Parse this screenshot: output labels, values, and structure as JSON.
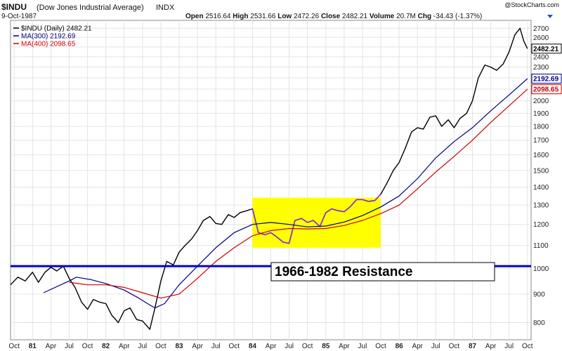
{
  "header": {
    "symbol": "$INDU",
    "name": "(Dow Jones Industrial Average)",
    "exchange": "INDX",
    "date": "9-Oct-1987",
    "watermark": "@StockCharts.com",
    "quote": {
      "open_label": "Open",
      "open": "2516.64",
      "high_label": "High",
      "high": "2531.66",
      "low_label": "Low",
      "low": "2472.26",
      "close_label": "Close",
      "close": "2482.21",
      "volume_label": "Volume",
      "volume": "20.7M",
      "chg_label": "Chg",
      "chg": "-34.43 (-1.37%)"
    }
  },
  "legend": [
    {
      "label": "$INDU (Daily) 2482.21",
      "color": "#000000"
    },
    {
      "label": "MA(300) 2192.69",
      "color": "#000080"
    },
    {
      "label": "MA(400) 2098.65",
      "color": "#cc0000"
    }
  ],
  "price_tags": [
    {
      "label": "2482.21",
      "value": 2482.21,
      "color": "#000000"
    },
    {
      "label": "2192.69",
      "value": 2192.69,
      "color": "#000080"
    },
    {
      "label": "2098.65",
      "value": 2098.65,
      "color": "#cc0000"
    }
  ],
  "annotation": {
    "text": "1966-1982 Resistance",
    "resistance_level": 1010,
    "line_color": "#0000cc",
    "box_color": "#ffff00",
    "box_x_range": [
      1984.0,
      1985.75
    ],
    "box_y_range": [
      1090,
      1340
    ],
    "highlight_color": "#8a2be2"
  },
  "chart_data": {
    "type": "line",
    "title": "$INDU (Dow Jones Industrial Average)",
    "ylabel": "",
    "xlabel": "",
    "y_scale": "log",
    "ylim": [
      745,
      2790
    ],
    "xlim": [
      1980.7,
      1987.8
    ],
    "grid": true,
    "legend_position": "top-left",
    "y_ticks": [
      800,
      900,
      1000,
      1100,
      1200,
      1300,
      1400,
      1500,
      1600,
      1700,
      1800,
      1900,
      2000,
      2100,
      2200,
      2300,
      2400,
      2500,
      2600,
      2700
    ],
    "x_ticks": [
      {
        "label": "Oct",
        "x": 1980.75
      },
      {
        "label": "81",
        "x": 1981.0
      },
      {
        "label": "Apr",
        "x": 1981.25
      },
      {
        "label": "Jul",
        "x": 1981.5
      },
      {
        "label": "Oct",
        "x": 1981.75
      },
      {
        "label": "82",
        "x": 1982.0
      },
      {
        "label": "Apr",
        "x": 1982.25
      },
      {
        "label": "Jul",
        "x": 1982.5
      },
      {
        "label": "Oct",
        "x": 1982.75
      },
      {
        "label": "83",
        "x": 1983.0
      },
      {
        "label": "Apr",
        "x": 1983.25
      },
      {
        "label": "Jul",
        "x": 1983.5
      },
      {
        "label": "Oct",
        "x": 1983.75
      },
      {
        "label": "84",
        "x": 1984.0
      },
      {
        "label": "Apr",
        "x": 1984.25
      },
      {
        "label": "Jul",
        "x": 1984.5
      },
      {
        "label": "Oct",
        "x": 1984.75
      },
      {
        "label": "85",
        "x": 1985.0
      },
      {
        "label": "Apr",
        "x": 1985.25
      },
      {
        "label": "Jul",
        "x": 1985.5
      },
      {
        "label": "Oct",
        "x": 1985.75
      },
      {
        "label": "86",
        "x": 1986.0
      },
      {
        "label": "Apr",
        "x": 1986.25
      },
      {
        "label": "Jul",
        "x": 1986.5
      },
      {
        "label": "Oct",
        "x": 1986.75
      },
      {
        "label": "87",
        "x": 1987.0
      },
      {
        "label": "Apr",
        "x": 1987.25
      },
      {
        "label": "Jul",
        "x": 1987.5
      },
      {
        "label": "Oct",
        "x": 1987.75
      }
    ],
    "series": [
      {
        "name": "$INDU (Daily)",
        "color": "#000000",
        "points": [
          [
            1980.7,
            935
          ],
          [
            1980.8,
            965
          ],
          [
            1980.9,
            950
          ],
          [
            1981.0,
            985
          ],
          [
            1981.08,
            945
          ],
          [
            1981.17,
            985
          ],
          [
            1981.25,
            1005
          ],
          [
            1981.33,
            990
          ],
          [
            1981.42,
            1010
          ],
          [
            1981.5,
            960
          ],
          [
            1981.58,
            925
          ],
          [
            1981.67,
            870
          ],
          [
            1981.75,
            845
          ],
          [
            1981.83,
            880
          ],
          [
            1981.92,
            870
          ],
          [
            1982.0,
            865
          ],
          [
            1982.08,
            825
          ],
          [
            1982.17,
            800
          ],
          [
            1982.25,
            840
          ],
          [
            1982.33,
            850
          ],
          [
            1982.42,
            810
          ],
          [
            1982.5,
            805
          ],
          [
            1982.6,
            778
          ],
          [
            1982.67,
            850
          ],
          [
            1982.75,
            950
          ],
          [
            1982.83,
            1030
          ],
          [
            1982.92,
            1015
          ],
          [
            1983.0,
            1070
          ],
          [
            1983.08,
            1100
          ],
          [
            1983.17,
            1130
          ],
          [
            1983.25,
            1170
          ],
          [
            1983.33,
            1220
          ],
          [
            1983.42,
            1240
          ],
          [
            1983.5,
            1205
          ],
          [
            1983.58,
            1200
          ],
          [
            1983.67,
            1250
          ],
          [
            1983.75,
            1235
          ],
          [
            1983.83,
            1260
          ],
          [
            1983.92,
            1270
          ],
          [
            1984.0,
            1280
          ],
          [
            1984.08,
            1160
          ],
          [
            1984.17,
            1150
          ],
          [
            1984.25,
            1160
          ],
          [
            1984.33,
            1140
          ],
          [
            1984.42,
            1115
          ],
          [
            1984.5,
            1110
          ],
          [
            1984.58,
            1220
          ],
          [
            1984.67,
            1230
          ],
          [
            1984.75,
            1210
          ],
          [
            1984.83,
            1220
          ],
          [
            1984.92,
            1190
          ],
          [
            1985.0,
            1260
          ],
          [
            1985.08,
            1280
          ],
          [
            1985.17,
            1270
          ],
          [
            1985.25,
            1265
          ],
          [
            1985.33,
            1290
          ],
          [
            1985.42,
            1330
          ],
          [
            1985.5,
            1330
          ],
          [
            1985.58,
            1320
          ],
          [
            1985.67,
            1325
          ],
          [
            1985.75,
            1360
          ],
          [
            1985.83,
            1420
          ],
          [
            1985.92,
            1500
          ],
          [
            1986.0,
            1550
          ],
          [
            1986.08,
            1640
          ],
          [
            1986.17,
            1760
          ],
          [
            1986.25,
            1790
          ],
          [
            1986.33,
            1780
          ],
          [
            1986.42,
            1870
          ],
          [
            1986.5,
            1880
          ],
          [
            1986.58,
            1800
          ],
          [
            1986.67,
            1850
          ],
          [
            1986.75,
            1790
          ],
          [
            1986.83,
            1860
          ],
          [
            1986.92,
            1900
          ],
          [
            1987.0,
            2000
          ],
          [
            1987.08,
            2200
          ],
          [
            1987.17,
            2320
          ],
          [
            1987.25,
            2300
          ],
          [
            1987.33,
            2270
          ],
          [
            1987.42,
            2330
          ],
          [
            1987.5,
            2450
          ],
          [
            1987.58,
            2630
          ],
          [
            1987.65,
            2700
          ],
          [
            1987.7,
            2560
          ],
          [
            1987.75,
            2482.21
          ]
        ]
      },
      {
        "name": "MA(300)",
        "color": "#000080",
        "points": [
          [
            1981.15,
            905
          ],
          [
            1981.5,
            950
          ],
          [
            1981.6,
            965
          ],
          [
            1981.8,
            955
          ],
          [
            1982.0,
            940
          ],
          [
            1982.25,
            915
          ],
          [
            1982.45,
            885
          ],
          [
            1982.6,
            860
          ],
          [
            1982.67,
            850
          ],
          [
            1982.8,
            865
          ],
          [
            1983.0,
            935
          ],
          [
            1983.25,
            1010
          ],
          [
            1983.5,
            1090
          ],
          [
            1983.75,
            1160
          ],
          [
            1984.0,
            1200
          ],
          [
            1984.25,
            1210
          ],
          [
            1984.5,
            1200
          ],
          [
            1984.75,
            1188
          ],
          [
            1985.0,
            1192
          ],
          [
            1985.25,
            1212
          ],
          [
            1985.5,
            1245
          ],
          [
            1985.75,
            1290
          ],
          [
            1986.0,
            1350
          ],
          [
            1986.25,
            1450
          ],
          [
            1986.5,
            1580
          ],
          [
            1986.75,
            1690
          ],
          [
            1987.0,
            1790
          ],
          [
            1987.25,
            1920
          ],
          [
            1987.5,
            2050
          ],
          [
            1987.75,
            2192.69
          ]
        ]
      },
      {
        "name": "MA(400)",
        "color": "#cc0000",
        "points": [
          [
            1981.5,
            945
          ],
          [
            1981.75,
            935
          ],
          [
            1982.0,
            935
          ],
          [
            1982.25,
            925
          ],
          [
            1982.5,
            905
          ],
          [
            1982.75,
            885
          ],
          [
            1983.0,
            900
          ],
          [
            1983.25,
            960
          ],
          [
            1983.5,
            1030
          ],
          [
            1983.75,
            1090
          ],
          [
            1984.0,
            1145
          ],
          [
            1984.25,
            1170
          ],
          [
            1984.5,
            1180
          ],
          [
            1984.75,
            1178
          ],
          [
            1985.0,
            1180
          ],
          [
            1985.25,
            1195
          ],
          [
            1985.5,
            1220
          ],
          [
            1985.75,
            1255
          ],
          [
            1986.0,
            1300
          ],
          [
            1986.25,
            1390
          ],
          [
            1986.5,
            1490
          ],
          [
            1986.75,
            1590
          ],
          [
            1987.0,
            1700
          ],
          [
            1987.25,
            1830
          ],
          [
            1987.5,
            1960
          ],
          [
            1987.75,
            2098.65
          ]
        ]
      }
    ]
  }
}
